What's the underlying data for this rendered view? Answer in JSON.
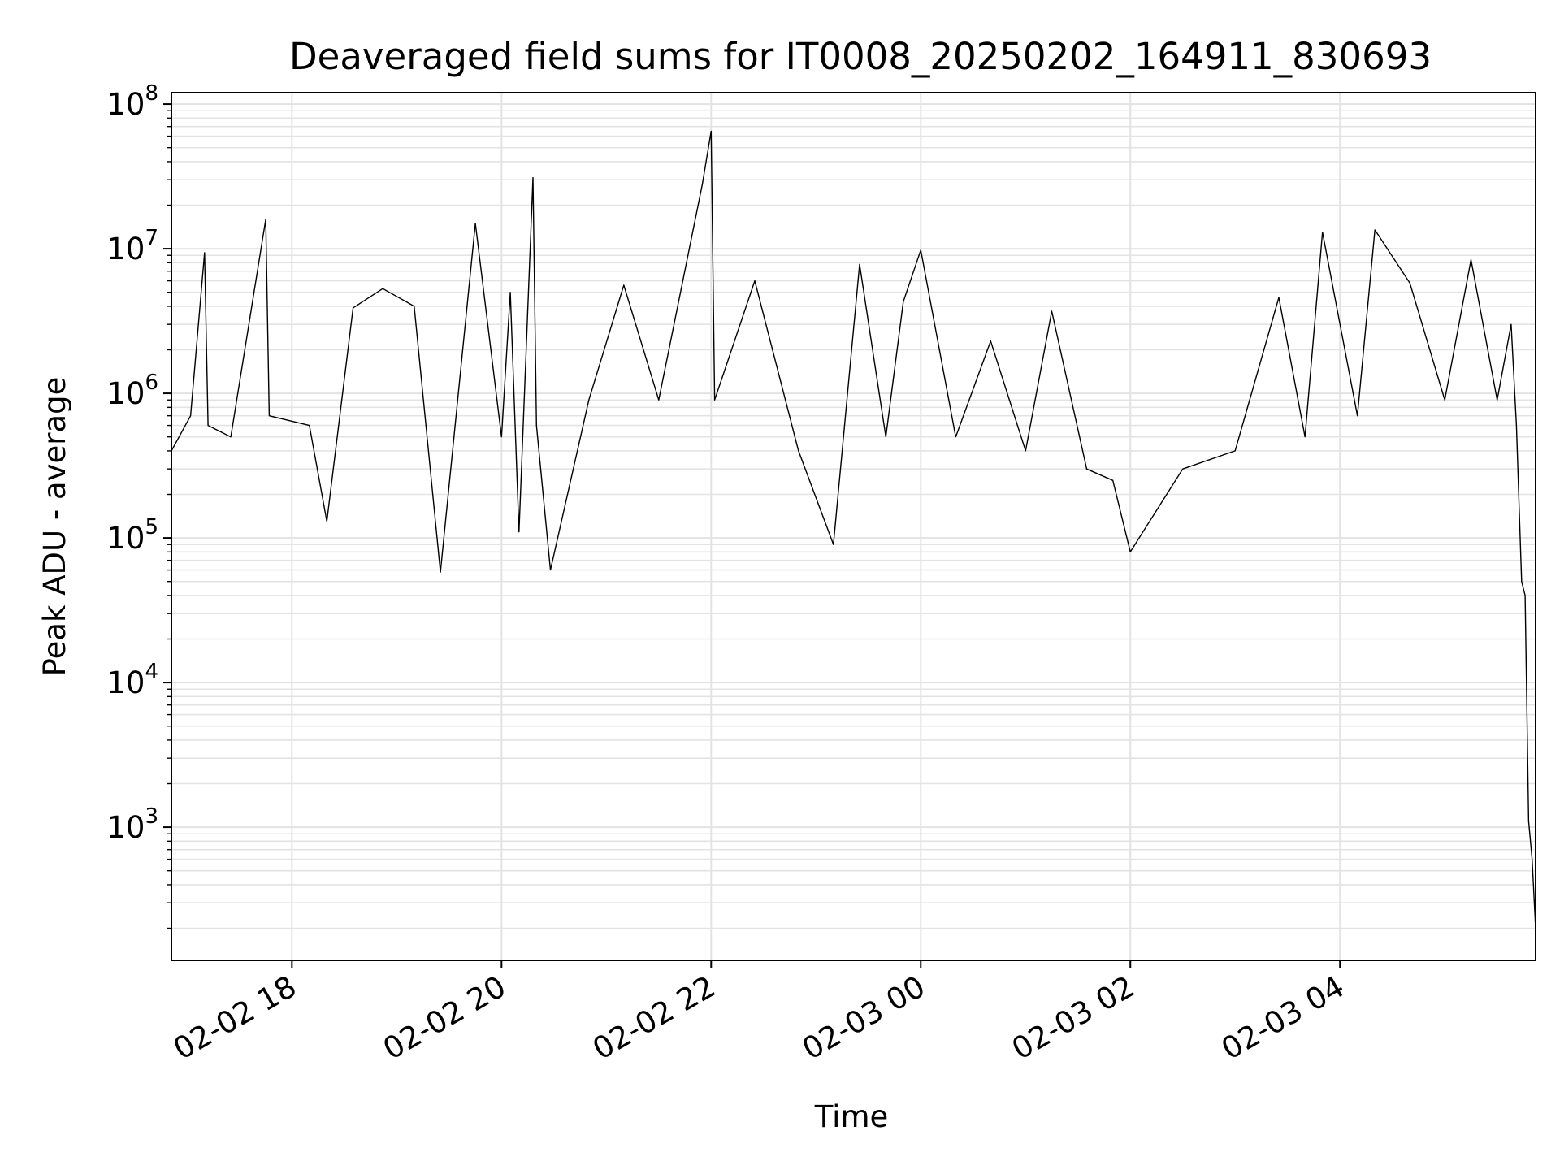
{
  "chart_data": {
    "type": "line",
    "title": "Deaveraged field sums for IT0008_20250202_164911_830693",
    "xlabel": "Time",
    "ylabel": "Peak ADU - average",
    "yscale": "log",
    "ylim": [
      120,
      120000000
    ],
    "xlim": [
      "2025-02-02 16:51",
      "2025-02-03 05:52"
    ],
    "x_ticks": [
      {
        "label": "02-02 18",
        "time": "2025-02-02 18:00"
      },
      {
        "label": "02-02 20",
        "time": "2025-02-02 20:00"
      },
      {
        "label": "02-02 22",
        "time": "2025-02-02 22:00"
      },
      {
        "label": "02-03 00",
        "time": "2025-02-03 00:00"
      },
      {
        "label": "02-03 02",
        "time": "2025-02-03 02:00"
      },
      {
        "label": "02-03 04",
        "time": "2025-02-03 04:00"
      }
    ],
    "y_ticks": [
      {
        "base": "10",
        "exp": "3",
        "value": 1000
      },
      {
        "base": "10",
        "exp": "4",
        "value": 10000
      },
      {
        "base": "10",
        "exp": "5",
        "value": 100000
      },
      {
        "base": "10",
        "exp": "6",
        "value": 1000000
      },
      {
        "base": "10",
        "exp": "7",
        "value": 10000000
      },
      {
        "base": "10",
        "exp": "8",
        "value": 100000000
      }
    ],
    "grid": true,
    "line_color": "#000000",
    "grid_color": "#e3e3e3",
    "series": [
      {
        "points": [
          [
            "2025-02-02 16:51",
            400000
          ],
          [
            "2025-02-02 17:02",
            700000
          ],
          [
            "2025-02-02 17:10",
            9400000
          ],
          [
            "2025-02-02 17:12",
            600000
          ],
          [
            "2025-02-02 17:25",
            500000
          ],
          [
            "2025-02-02 17:45",
            16000000
          ],
          [
            "2025-02-02 17:47",
            700000
          ],
          [
            "2025-02-02 18:10",
            600000
          ],
          [
            "2025-02-02 18:20",
            130000
          ],
          [
            "2025-02-02 18:35",
            3900000
          ],
          [
            "2025-02-02 18:52",
            5300000
          ],
          [
            "2025-02-02 19:10",
            4000000
          ],
          [
            "2025-02-02 19:25",
            58000
          ],
          [
            "2025-02-02 19:45",
            15000000
          ],
          [
            "2025-02-02 20:00",
            500000
          ],
          [
            "2025-02-02 20:05",
            5000000
          ],
          [
            "2025-02-02 20:10",
            110000
          ],
          [
            "2025-02-02 20:18",
            31000000
          ],
          [
            "2025-02-02 20:20",
            600000
          ],
          [
            "2025-02-02 20:28",
            60000
          ],
          [
            "2025-02-02 20:50",
            900000
          ],
          [
            "2025-02-02 21:10",
            5600000
          ],
          [
            "2025-02-02 21:30",
            900000
          ],
          [
            "2025-02-02 21:55",
            28000000
          ],
          [
            "2025-02-02 22:00",
            65000000
          ],
          [
            "2025-02-02 22:02",
            900000
          ],
          [
            "2025-02-02 22:25",
            6000000
          ],
          [
            "2025-02-02 22:50",
            400000
          ],
          [
            "2025-02-02 23:10",
            90000
          ],
          [
            "2025-02-02 23:25",
            7800000
          ],
          [
            "2025-02-02 23:40",
            500000
          ],
          [
            "2025-02-02 23:50",
            4300000
          ],
          [
            "2025-02-03 00:00",
            9800000
          ],
          [
            "2025-02-03 00:20",
            500000
          ],
          [
            "2025-02-03 00:40",
            2300000
          ],
          [
            "2025-02-03 01:00",
            400000
          ],
          [
            "2025-02-03 01:15",
            3700000
          ],
          [
            "2025-02-03 01:35",
            300000
          ],
          [
            "2025-02-03 01:50",
            250000
          ],
          [
            "2025-02-03 02:00",
            80000
          ],
          [
            "2025-02-03 02:30",
            300000
          ],
          [
            "2025-02-03 03:00",
            400000
          ],
          [
            "2025-02-03 03:25",
            4600000
          ],
          [
            "2025-02-03 03:40",
            500000
          ],
          [
            "2025-02-03 03:50",
            13000000
          ],
          [
            "2025-02-03 04:10",
            700000
          ],
          [
            "2025-02-03 04:20",
            13500000
          ],
          [
            "2025-02-03 04:40",
            5800000
          ],
          [
            "2025-02-03 05:00",
            900000
          ],
          [
            "2025-02-03 05:15",
            8400000
          ],
          [
            "2025-02-03 05:30",
            900000
          ],
          [
            "2025-02-03 05:38",
            3000000
          ],
          [
            "2025-02-03 05:41",
            600000
          ],
          [
            "2025-02-03 05:44",
            50000
          ],
          [
            "2025-02-03 05:46",
            40000
          ],
          [
            "2025-02-03 05:48",
            1100
          ],
          [
            "2025-02-03 05:50",
            600
          ],
          [
            "2025-02-03 05:52",
            200
          ]
        ]
      }
    ]
  }
}
